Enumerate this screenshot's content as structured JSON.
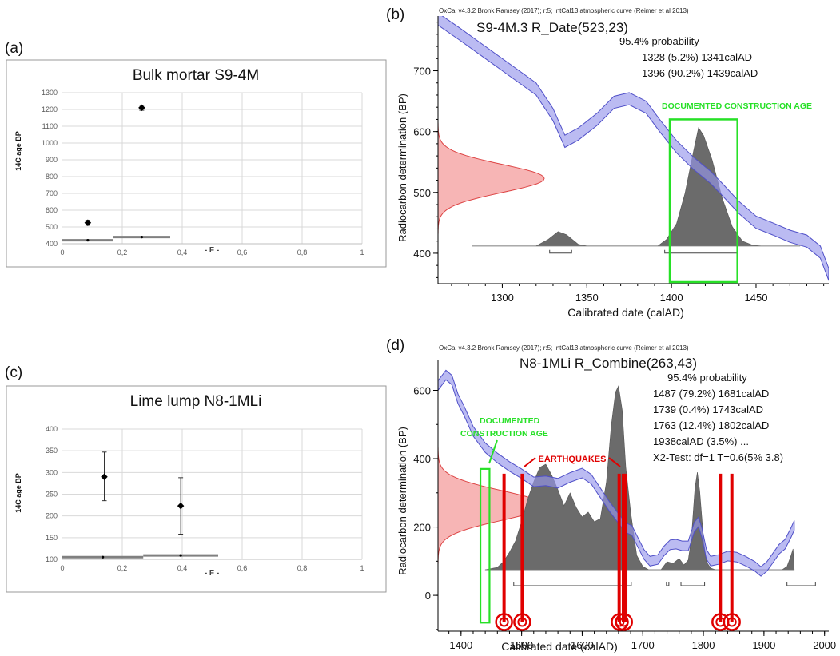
{
  "chart_data": [
    {
      "panel": "(a)",
      "type": "scatter",
      "title": "Bulk mortar S9-4M",
      "ylabel": "14C age BP",
      "xlabel": "- F -",
      "xlim": [
        0,
        1
      ],
      "ylim": [
        400,
        1300
      ],
      "x_ticks": [
        0,
        0.2,
        0.4,
        0.6,
        0.8,
        1
      ],
      "x_tick_labels": [
        "0",
        "0,2",
        "0,4",
        "0,6",
        "0,8",
        "1"
      ],
      "y_ticks": [
        400,
        500,
        600,
        700,
        800,
        900,
        1000,
        1100,
        1200,
        1300
      ],
      "grid": true,
      "points": [
        {
          "x": 0.085,
          "y": 525,
          "err": 15
        },
        {
          "x": 0.265,
          "y": 1210,
          "err": 15
        }
      ],
      "bars": [
        {
          "x0": 0,
          "x1": 0.17,
          "y": 421
        },
        {
          "x0": 0.17,
          "x1": 0.36,
          "y": 440
        }
      ]
    },
    {
      "panel": "(b)",
      "type": "area",
      "header": "OxCal v4.3.2 Bronk Ramsey (2017); r:5; IntCal13 atmospheric curve (Reimer et al 2013)",
      "title": "S9-4M.3 R_Date(523,23)",
      "annotation_lines": [
        "95.4% probability",
        "1328 (5.2%) 1341calAD",
        "1396 (90.2%) 1439calAD"
      ],
      "xlabel": "Calibrated date (calAD)",
      "ylabel": "Radiocarbon determination (BP)",
      "xlim": [
        1262,
        1493
      ],
      "ylim": [
        350,
        790
      ],
      "x_ticks": [
        1300,
        1350,
        1400,
        1450
      ],
      "y_ticks": [
        400,
        500,
        600,
        700
      ],
      "box_label": "DOCUMENTED CONSTRUCTION AGE",
      "box_range": [
        1399,
        1439
      ],
      "box_y": [
        350,
        620
      ],
      "measurement": {
        "mean": 523,
        "sd": 23
      },
      "calibration_curve": [
        [
          1262,
          785
        ],
        [
          1275,
          760
        ],
        [
          1290,
          730
        ],
        [
          1305,
          700
        ],
        [
          1320,
          670
        ],
        [
          1330,
          628
        ],
        [
          1337,
          584
        ],
        [
          1345,
          596
        ],
        [
          1356,
          620
        ],
        [
          1366,
          648
        ],
        [
          1375,
          654
        ],
        [
          1385,
          640
        ],
        [
          1393,
          610
        ],
        [
          1403,
          575
        ],
        [
          1413,
          548
        ],
        [
          1423,
          525
        ],
        [
          1430,
          505
        ],
        [
          1440,
          475
        ],
        [
          1450,
          451
        ],
        [
          1460,
          440
        ],
        [
          1470,
          428
        ],
        [
          1480,
          420
        ],
        [
          1488,
          402
        ],
        [
          1493,
          365
        ]
      ],
      "curve_halfwidth": 10,
      "posterior_baseline": 412,
      "posterior": [
        [
          1282,
          0
        ],
        [
          1320,
          0
        ],
        [
          1327,
          8
        ],
        [
          1333,
          18
        ],
        [
          1338,
          14
        ],
        [
          1345,
          2
        ],
        [
          1350,
          0
        ],
        [
          1392,
          0
        ],
        [
          1397,
          8
        ],
        [
          1403,
          28
        ],
        [
          1408,
          66
        ],
        [
          1413,
          118
        ],
        [
          1416,
          148
        ],
        [
          1419,
          138
        ],
        [
          1424,
          108
        ],
        [
          1430,
          60
        ],
        [
          1436,
          24
        ],
        [
          1442,
          6
        ],
        [
          1448,
          1
        ],
        [
          1453,
          0
        ],
        [
          1476,
          0
        ]
      ],
      "ranges": [
        [
          1328,
          1341
        ],
        [
          1396,
          1439
        ]
      ]
    },
    {
      "panel": "(c)",
      "type": "scatter",
      "title": "Lime lump N8-1MLi",
      "ylabel": "14C age BP",
      "xlabel": "- F -",
      "xlim": [
        0,
        1
      ],
      "ylim": [
        100,
        400
      ],
      "x_ticks": [
        0,
        0.2,
        0.4,
        0.6,
        0.8,
        1
      ],
      "x_tick_labels": [
        "0",
        "0,2",
        "0,4",
        "0,6",
        "0,8",
        "1"
      ],
      "y_ticks": [
        100,
        150,
        200,
        250,
        300,
        350,
        400
      ],
      "grid": true,
      "points": [
        {
          "x": 0.14,
          "y": 290,
          "err_lo": 55,
          "err_hi": 57
        },
        {
          "x": 0.395,
          "y": 223,
          "err_lo": 65,
          "err_hi": 65
        }
      ],
      "bars": [
        {
          "x0": 0,
          "x1": 0.27,
          "y": 105
        },
        {
          "x0": 0.27,
          "x1": 0.52,
          "y": 109
        }
      ]
    },
    {
      "panel": "(d)",
      "type": "area",
      "header": "OxCal v4.3.2 Bronk Ramsey (2017); r:5; IntCal13 atmospheric curve (Reimer et al 2013)",
      "title": "N8-1MLi R_Combine(263,43)",
      "annotation_lines": [
        "95.4% probability",
        "1487 (79.2%) 1681calAD",
        "1739 (0.4%) 1743calAD",
        "1763 (12.4%) 1802calAD",
        "1938calAD (3.5%) ...",
        "X2-Test: df=1 T=0.6(5% 3.8)"
      ],
      "xlabel": "Calibrated date (calAD)",
      "ylabel": "Radiocarbon determination (BP)",
      "xlim": [
        1362,
        2007
      ],
      "ylim": [
        -105,
        690
      ],
      "x_ticks": [
        1400,
        1500,
        1600,
        1700,
        1800,
        1900,
        2000
      ],
      "y_ticks": [
        0,
        200,
        400,
        600
      ],
      "box_label": "DOCUMENTED CONSTRUCTION AGE",
      "box_range": [
        1432,
        1447
      ],
      "box_y": [
        -80,
        370
      ],
      "earthquakes_label": "EARTHQUAKES",
      "earthquakes": [
        1471,
        1501,
        1661,
        1668,
        1672,
        1828,
        1847
      ],
      "earthquake_markers": [
        1471,
        1501,
        1662,
        1669,
        1828,
        1847
      ],
      "measurement": {
        "mean": 263,
        "sd": 43
      },
      "calibration_curve": [
        [
          1362,
          614
        ],
        [
          1375,
          645
        ],
        [
          1385,
          630
        ],
        [
          1395,
          575
        ],
        [
          1405,
          540
        ],
        [
          1420,
          480
        ],
        [
          1440,
          432
        ],
        [
          1460,
          402
        ],
        [
          1480,
          377
        ],
        [
          1500,
          356
        ],
        [
          1520,
          332
        ],
        [
          1540,
          335
        ],
        [
          1560,
          328
        ],
        [
          1580,
          345
        ],
        [
          1600,
          358
        ],
        [
          1615,
          340
        ],
        [
          1630,
          300
        ],
        [
          1645,
          260
        ],
        [
          1660,
          225
        ],
        [
          1672,
          198
        ],
        [
          1682,
          190
        ],
        [
          1692,
          155
        ],
        [
          1702,
          120
        ],
        [
          1712,
          100
        ],
        [
          1725,
          105
        ],
        [
          1735,
          130
        ],
        [
          1745,
          148
        ],
        [
          1755,
          150
        ],
        [
          1765,
          145
        ],
        [
          1775,
          145
        ],
        [
          1785,
          200
        ],
        [
          1792,
          215
        ],
        [
          1798,
          180
        ],
        [
          1805,
          120
        ],
        [
          1812,
          100
        ],
        [
          1825,
          105
        ],
        [
          1840,
          115
        ],
        [
          1855,
          112
        ],
        [
          1870,
          100
        ],
        [
          1885,
          85
        ],
        [
          1895,
          70
        ],
        [
          1905,
          85
        ],
        [
          1915,
          110
        ],
        [
          1925,
          135
        ],
        [
          1935,
          150
        ],
        [
          1945,
          185
        ],
        [
          1950,
          205
        ]
      ],
      "curve_halfwidth": 14,
      "posterior_baseline": 75,
      "posterior": [
        [
          1440,
          0
        ],
        [
          1460,
          3
        ],
        [
          1470,
          10
        ],
        [
          1480,
          22
        ],
        [
          1490,
          36
        ],
        [
          1500,
          60
        ],
        [
          1510,
          88
        ],
        [
          1520,
          110
        ],
        [
          1530,
          128
        ],
        [
          1540,
          132
        ],
        [
          1550,
          118
        ],
        [
          1560,
          100
        ],
        [
          1570,
          80
        ],
        [
          1580,
          96
        ],
        [
          1590,
          78
        ],
        [
          1600,
          66
        ],
        [
          1610,
          72
        ],
        [
          1620,
          60
        ],
        [
          1630,
          64
        ],
        [
          1640,
          110
        ],
        [
          1648,
          180
        ],
        [
          1655,
          222
        ],
        [
          1660,
          230
        ],
        [
          1666,
          200
        ],
        [
          1672,
          128
        ],
        [
          1680,
          72
        ],
        [
          1690,
          18
        ],
        [
          1700,
          4
        ],
        [
          1710,
          0
        ],
        [
          1730,
          0
        ],
        [
          1740,
          10
        ],
        [
          1750,
          8
        ],
        [
          1760,
          14
        ],
        [
          1768,
          6
        ],
        [
          1775,
          12
        ],
        [
          1780,
          38
        ],
        [
          1786,
          102
        ],
        [
          1790,
          122
        ],
        [
          1794,
          98
        ],
        [
          1800,
          40
        ],
        [
          1805,
          10
        ],
        [
          1812,
          2
        ],
        [
          1820,
          0
        ],
        [
          1930,
          0
        ],
        [
          1938,
          4
        ],
        [
          1944,
          16
        ],
        [
          1948,
          26
        ],
        [
          1950,
          0
        ]
      ],
      "ranges": [
        [
          1487,
          1681
        ],
        [
          1739,
          1743
        ],
        [
          1763,
          1802
        ],
        [
          1938,
          1985
        ]
      ]
    }
  ]
}
